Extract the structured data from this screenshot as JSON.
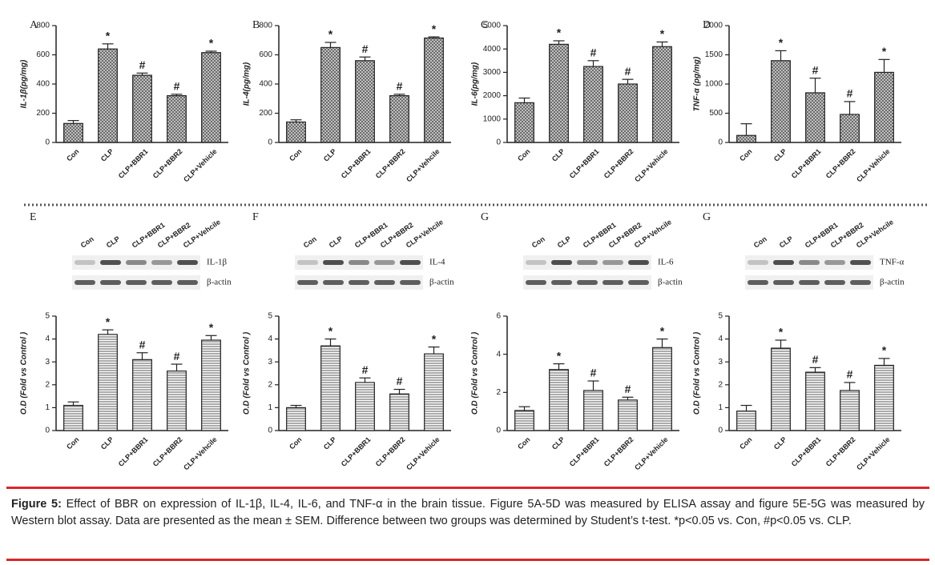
{
  "chart_data": [
    {
      "type": "bar",
      "panel": "A",
      "y_label": "IL-1β(pg/mg)",
      "categories": [
        "Con",
        "CLP",
        "CLP+BBR1",
        "CLP+BBR2",
        "CLP+Vehicle"
      ],
      "values": [
        130,
        640,
        460,
        320,
        615
      ],
      "errors": [
        20,
        35,
        15,
        10,
        10
      ],
      "annotations": [
        null,
        "*",
        "#",
        "#",
        "*"
      ],
      "ylim": [
        0,
        800
      ],
      "yticks": [
        0,
        200,
        400,
        600,
        800
      ],
      "pattern": "crosshatch"
    },
    {
      "type": "bar",
      "panel": "B",
      "y_label": "IL-4(pg/mg)",
      "categories": [
        "Con",
        "CLP",
        "CLP+BBR1",
        "CLP+BBR2",
        "CLP+Vehcile"
      ],
      "values": [
        140,
        650,
        560,
        320,
        715
      ],
      "errors": [
        15,
        35,
        25,
        10,
        8
      ],
      "annotations": [
        null,
        "*",
        "#",
        "#",
        "*"
      ],
      "ylim": [
        0,
        800
      ],
      "yticks": [
        0,
        200,
        400,
        600,
        800
      ],
      "pattern": "crosshatch"
    },
    {
      "type": "bar",
      "panel": "C",
      "y_label": "IL-6(pg/mg)",
      "categories": [
        "Con",
        "CLP",
        "CLP+BBR1",
        "CLP+BBR2",
        "CLP+Vehicle"
      ],
      "values": [
        1700,
        4200,
        3250,
        2500,
        4100
      ],
      "errors": [
        200,
        150,
        250,
        200,
        200
      ],
      "annotations": [
        null,
        "*",
        "#",
        "#",
        "*"
      ],
      "ylim": [
        0,
        5000
      ],
      "yticks": [
        0,
        1000,
        2000,
        3000,
        4000,
        5000
      ],
      "pattern": "crosshatch"
    },
    {
      "type": "bar",
      "panel": "D",
      "y_label": "TNF-α (pg/mg)",
      "categories": [
        "Con",
        "CLP",
        "CLP+BBR1",
        "CLP+BBR2",
        "CLP+Vehicle"
      ],
      "values": [
        120,
        1400,
        850,
        480,
        1200
      ],
      "errors": [
        200,
        170,
        250,
        220,
        220
      ],
      "annotations": [
        null,
        "*",
        "#",
        "#",
        "*"
      ],
      "ylim": [
        0,
        2000
      ],
      "yticks": [
        0,
        500,
        1000,
        1500,
        2000
      ],
      "pattern": "crosshatch"
    },
    {
      "type": "bar",
      "panel": "E",
      "y_label": "O.D (Fold vs Control )",
      "categories": [
        "Con",
        "CLP",
        "CLP+BBR1",
        "CLP+BBR2",
        "CLP+Vehcile"
      ],
      "values": [
        1.1,
        4.2,
        3.1,
        2.6,
        3.95
      ],
      "errors": [
        0.15,
        0.2,
        0.3,
        0.3,
        0.2
      ],
      "annotations": [
        null,
        "*",
        "#",
        "#",
        "*"
      ],
      "ylim": [
        0,
        5
      ],
      "yticks": [
        0,
        1,
        2,
        3,
        4,
        5
      ],
      "pattern": "hlines",
      "blot": {
        "lanes": [
          "Con",
          "CLP",
          "CLP+BBR1",
          "CLP+BBR2",
          "CLP+Vehcile"
        ],
        "rows": [
          "IL-1β",
          "β-actin"
        ]
      }
    },
    {
      "type": "bar",
      "panel": "F",
      "y_label": "O.D (Fold vs Control )",
      "categories": [
        "Con",
        "CLP",
        "CLP+BBR1",
        "CLP+BBR2",
        "CLP+Vehicle"
      ],
      "values": [
        1.0,
        3.7,
        2.1,
        1.6,
        3.35
      ],
      "errors": [
        0.1,
        0.3,
        0.2,
        0.2,
        0.3
      ],
      "annotations": [
        null,
        "*",
        "#",
        "#",
        "*"
      ],
      "ylim": [
        0,
        5
      ],
      "yticks": [
        0,
        1,
        2,
        3,
        4,
        5
      ],
      "pattern": "hlines",
      "blot": {
        "lanes": [
          "Con",
          "CLP",
          "CLP+BBR1",
          "CLP+BBR2",
          "CLP+Vehcile"
        ],
        "rows": [
          "IL-4",
          "β-actin"
        ]
      }
    },
    {
      "type": "bar",
      "panel": "G",
      "y_label": "O.D (Fold vs Control )",
      "categories": [
        "Con",
        "CLP",
        "CLP+BBR1",
        "CLP+BBR2",
        "CLP+Vehicle"
      ],
      "values": [
        1.05,
        3.2,
        2.1,
        1.6,
        4.35
      ],
      "errors": [
        0.2,
        0.3,
        0.5,
        0.15,
        0.45
      ],
      "annotations": [
        null,
        "*",
        "#",
        "#",
        "*"
      ],
      "ylim": [
        0,
        6
      ],
      "yticks": [
        0,
        2,
        4,
        6
      ],
      "pattern": "hlines",
      "blot": {
        "lanes": [
          "Con",
          "CLP",
          "CLP+BBR1",
          "CLP+BBR2",
          "CLP+Vehcile"
        ],
        "rows": [
          "IL-6",
          "β-actin"
        ]
      }
    },
    {
      "type": "bar",
      "panel": "G",
      "y_label": "O.D (Fold vs Control )",
      "categories": [
        "Con",
        "CLP",
        "CLP+BBR1",
        "CLP+BBR2",
        "CLP+Vehicle"
      ],
      "values": [
        0.85,
        3.6,
        2.55,
        1.75,
        2.85
      ],
      "errors": [
        0.25,
        0.35,
        0.2,
        0.35,
        0.3
      ],
      "annotations": [
        null,
        "*",
        "#",
        "#",
        "*"
      ],
      "ylim": [
        0,
        5
      ],
      "yticks": [
        0,
        1,
        2,
        3,
        4,
        5
      ],
      "pattern": "hlines",
      "blot": {
        "lanes": [
          "Con",
          "CLP",
          "CLP+BBR1",
          "CLP+BBR2",
          "CLP+Vehcile"
        ],
        "rows": [
          "TNF-α",
          "β-actin"
        ]
      }
    }
  ],
  "caption": {
    "label": "Figure 5:",
    "text": "Effect of BBR on expression of IL-1β, IL-4, IL-6, and TNF-α in the brain tissue. Figure 5A-5D was measured by ELISA assay and figure 5E-5G was measured by Western blot assay. Data are presented as the mean ± SEM. Difference between two groups was determined by Student’s t-test. *p<0.05 vs. Con, #p<0.05 vs. CLP."
  }
}
